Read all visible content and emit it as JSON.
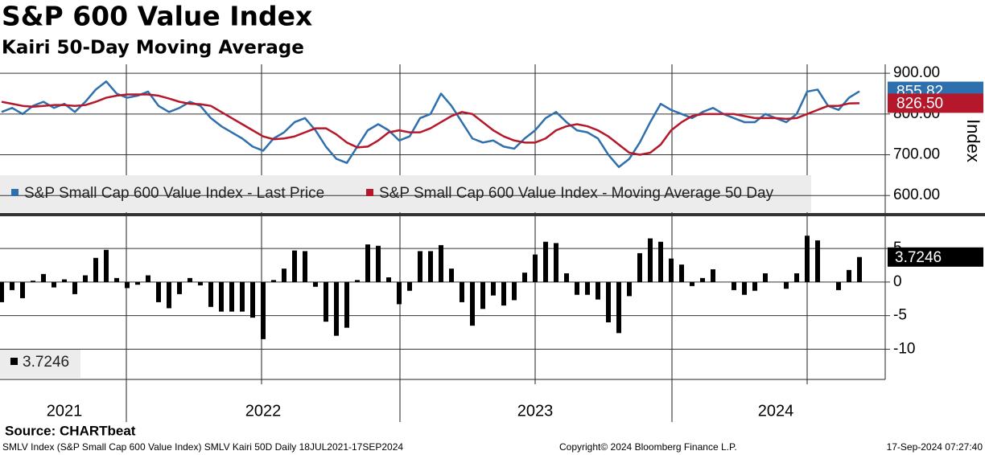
{
  "chart_data": [
    {
      "type": "line",
      "title": "S&P 600 Value Index",
      "subtitle": "Kairi 50-Day Moving Average",
      "y_label": "Index",
      "ylim": [
        557,
        922
      ],
      "yticks": [
        {
          "value": 900,
          "label": "900.00"
        },
        {
          "value": 800,
          "label": "800.00"
        },
        {
          "value": 700,
          "label": "700.00"
        },
        {
          "value": 600,
          "label": "600.00"
        }
      ],
      "grid": true,
      "series": [
        {
          "name": "S&P Small Cap 600 Value Index - Last Price",
          "color": "#2e6fad",
          "values": [
            805,
            815,
            800,
            820,
            830,
            815,
            825,
            805,
            830,
            860,
            880,
            850,
            840,
            845,
            855,
            820,
            805,
            815,
            830,
            820,
            790,
            770,
            755,
            740,
            720,
            710,
            740,
            755,
            780,
            790,
            760,
            720,
            690,
            680,
            720,
            760,
            775,
            760,
            735,
            745,
            790,
            800,
            850,
            820,
            780,
            740,
            730,
            735,
            720,
            715,
            740,
            760,
            790,
            805,
            780,
            760,
            755,
            740,
            700,
            670,
            690,
            730,
            780,
            825,
            810,
            800,
            790,
            805,
            815,
            800,
            790,
            780,
            780,
            800,
            790,
            780,
            800,
            855,
            860,
            820,
            810,
            840,
            855.82
          ]
        },
        {
          "name": "S&P Small Cap 600 Value Index - Moving Average 50 Day",
          "color": "#b5172b",
          "values": [
            830,
            825,
            820,
            818,
            820,
            822,
            822,
            820,
            822,
            830,
            840,
            845,
            848,
            848,
            848,
            845,
            838,
            830,
            825,
            824,
            820,
            805,
            790,
            775,
            760,
            745,
            738,
            740,
            745,
            755,
            765,
            765,
            750,
            730,
            718,
            720,
            735,
            755,
            760,
            755,
            755,
            765,
            780,
            795,
            805,
            800,
            780,
            760,
            745,
            735,
            730,
            730,
            740,
            760,
            770,
            775,
            770,
            760,
            745,
            725,
            705,
            700,
            705,
            725,
            760,
            780,
            795,
            800,
            800,
            800,
            800,
            795,
            790,
            790,
            790,
            788,
            790,
            800,
            810,
            820,
            820,
            826,
            826.5
          ],
          "value_labels": [
            null,
            null,
            null,
            null,
            null,
            null,
            null,
            null,
            null,
            null,
            null,
            null,
            null,
            null,
            null,
            null,
            null,
            null,
            null,
            null,
            null,
            null,
            null,
            null,
            null,
            null,
            null,
            null,
            null,
            null,
            null,
            null,
            null,
            null,
            null,
            null,
            null,
            null,
            null,
            null,
            null,
            null,
            null,
            null,
            null,
            null,
            null,
            null,
            null,
            null,
            null,
            null,
            null,
            null,
            null,
            null,
            null,
            null,
            null,
            null,
            null,
            null,
            null,
            null,
            null,
            null,
            null,
            null,
            null,
            null,
            null,
            null,
            null,
            null,
            null,
            null,
            null,
            null,
            null,
            null,
            null,
            null,
            "826.50"
          ]
        }
      ]
    },
    {
      "type": "bar",
      "categories": [
        null,
        null,
        null,
        null,
        null,
        null,
        "2021",
        null,
        null,
        null,
        null,
        null,
        null,
        null,
        null,
        null,
        null,
        null,
        null,
        null,
        null,
        null,
        null,
        null,
        null,
        "2022",
        null,
        null,
        null,
        null,
        null,
        null,
        null,
        null,
        null,
        null,
        null,
        null,
        null,
        null,
        null,
        null,
        null,
        null,
        null,
        null,
        null,
        null,
        null,
        null,
        null,
        "2023",
        null,
        null,
        null,
        null,
        null,
        null,
        null,
        null,
        null,
        null,
        null,
        null,
        null,
        null,
        null,
        null,
        null,
        null,
        null,
        null,
        null,
        null,
        "2024",
        null,
        null,
        null,
        null,
        null,
        null,
        null,
        null
      ],
      "ylim": [
        -14.5,
        9.8
      ],
      "yticks": [
        5,
        0,
        -5,
        -10
      ],
      "grid": true,
      "color": "#000000",
      "values": [
        -3.0,
        -1.2,
        -2.4,
        0.2,
        1.2,
        -0.8,
        0.4,
        -1.8,
        1.0,
        3.6,
        4.8,
        0.6,
        -0.9,
        -0.4,
        1.0,
        -3.0,
        -3.9,
        -1.8,
        0.6,
        -0.5,
        -3.7,
        -4.4,
        -4.4,
        -4.4,
        -5.3,
        -8.5,
        0.3,
        2.0,
        4.7,
        4.6,
        -0.7,
        -5.9,
        -8.0,
        -6.8,
        0.3,
        5.6,
        5.4,
        0.7,
        -3.3,
        -1.3,
        4.6,
        4.6,
        5.5,
        2.0,
        -3.0,
        -6.5,
        -4.0,
        -2.0,
        -3.5,
        -2.7,
        1.4,
        4.1,
        6.0,
        5.8,
        1.3,
        -1.9,
        -1.9,
        -2.6,
        -6.0,
        -7.6,
        -2.1,
        4.3,
        6.5,
        6.0,
        3.5,
        2.6,
        -0.6,
        0.6,
        1.9,
        0,
        -1.2,
        -1.9,
        -1.3,
        1.3,
        0,
        -1.0,
        1.3,
        6.9,
        6.2,
        0,
        -1.2,
        1.8,
        3.7246
      ]
    }
  ],
  "footer": {
    "source": "Source: CHARTbeat",
    "left": "SMLV Index (S&P Small Cap 600 Value Index) SMLV Kairi 50D  Daily 18JUL2021-17SEP2024",
    "center": "Copyright© 2024 Bloomberg Finance L.P.",
    "right": "17-Sep-2024 07:27:40"
  }
}
